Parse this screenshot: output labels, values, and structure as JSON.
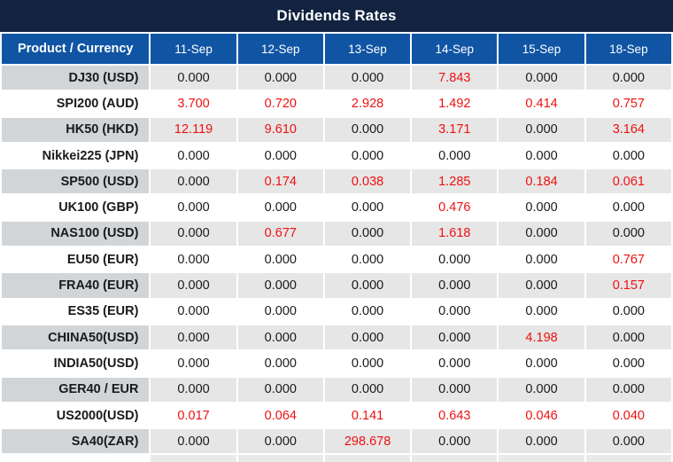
{
  "title": "Dividends Rates",
  "colors": {
    "title_bg": "#122340",
    "header_bg": "#1055A4",
    "header_text": "#FFFFFF",
    "stripe_row_bg": "#E6E6E6",
    "stripe_row_product_bg": "#D2D5D8",
    "white_row_bg": "#FFFFFF",
    "zero_value_text": "#1A1A1A",
    "nonzero_value_text": "#EE1111"
  },
  "chart_data": {
    "type": "table",
    "title": "Dividends Rates",
    "product_header": "Product / Currency",
    "date_columns": [
      "11-Sep",
      "12-Sep",
      "13-Sep",
      "14-Sep",
      "15-Sep",
      "18-Sep"
    ],
    "rows": [
      {
        "product": "DJ30 (USD)",
        "values": [
          "0.000",
          "0.000",
          "0.000",
          "7.843",
          "0.000",
          "0.000"
        ]
      },
      {
        "product": "SPI200 (AUD)",
        "values": [
          "3.700",
          "0.720",
          "2.928",
          "1.492",
          "0.414",
          "0.757"
        ]
      },
      {
        "product": "HK50 (HKD)",
        "values": [
          "12.119",
          "9.610",
          "0.000",
          "3.171",
          "0.000",
          "3.164"
        ]
      },
      {
        "product": "Nikkei225 (JPN)",
        "values": [
          "0.000",
          "0.000",
          "0.000",
          "0.000",
          "0.000",
          "0.000"
        ]
      },
      {
        "product": "SP500 (USD)",
        "values": [
          "0.000",
          "0.174",
          "0.038",
          "1.285",
          "0.184",
          "0.061"
        ]
      },
      {
        "product": "UK100 (GBP)",
        "values": [
          "0.000",
          "0.000",
          "0.000",
          "0.476",
          "0.000",
          "0.000"
        ]
      },
      {
        "product": "NAS100 (USD)",
        "values": [
          "0.000",
          "0.677",
          "0.000",
          "1.618",
          "0.000",
          "0.000"
        ]
      },
      {
        "product": "EU50 (EUR)",
        "values": [
          "0.000",
          "0.000",
          "0.000",
          "0.000",
          "0.000",
          "0.767"
        ]
      },
      {
        "product": "FRA40 (EUR)",
        "values": [
          "0.000",
          "0.000",
          "0.000",
          "0.000",
          "0.000",
          "0.157"
        ]
      },
      {
        "product": "ES35 (EUR)",
        "values": [
          "0.000",
          "0.000",
          "0.000",
          "0.000",
          "0.000",
          "0.000"
        ]
      },
      {
        "product": "CHINA50(USD)",
        "values": [
          "0.000",
          "0.000",
          "0.000",
          "0.000",
          "4.198",
          "0.000"
        ]
      },
      {
        "product": "INDIA50(USD)",
        "values": [
          "0.000",
          "0.000",
          "0.000",
          "0.000",
          "0.000",
          "0.000"
        ]
      },
      {
        "product": "GER40 / EUR",
        "values": [
          "0.000",
          "0.000",
          "0.000",
          "0.000",
          "0.000",
          "0.000"
        ]
      },
      {
        "product": "US2000(USD)",
        "values": [
          "0.017",
          "0.064",
          "0.141",
          "0.643",
          "0.046",
          "0.040"
        ]
      },
      {
        "product": "SA40(ZAR)",
        "values": [
          "0.000",
          "0.000",
          "298.678",
          "0.000",
          "0.000",
          "0.000"
        ]
      }
    ]
  }
}
